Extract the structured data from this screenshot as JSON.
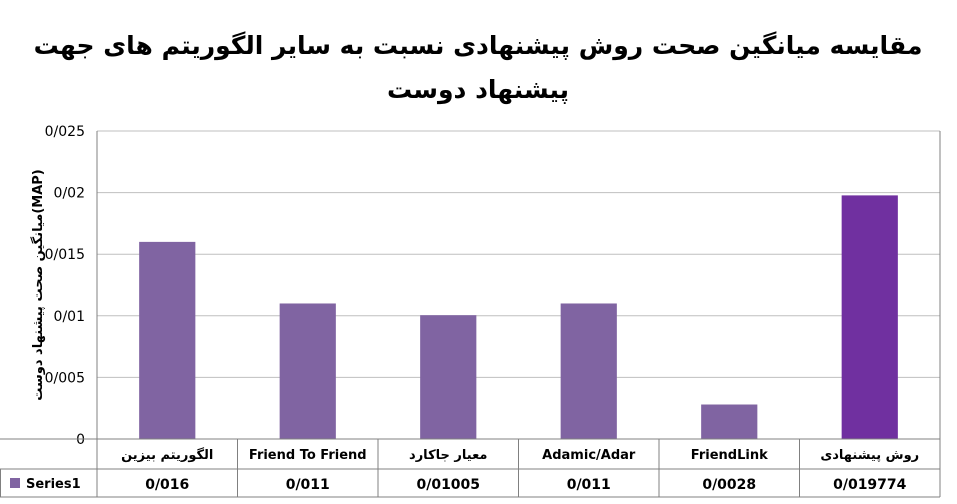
{
  "chart_data": {
    "type": "bar",
    "title_lines": [
      "مقایسه میانگین صحت روش پیشنهادی نسبت به سایر الگوریتم های جهت",
      "پیشنهاد دوست"
    ],
    "ylabel": "میانگین صحت پیشنهاد دوست(MAP)",
    "xlabel": "",
    "ylim": [
      0,
      0.025
    ],
    "yticks": [
      0,
      0.005,
      0.01,
      0.015,
      0.02,
      0.025
    ],
    "ytick_labels": [
      "0",
      "0/005",
      "0/01",
      "0/015",
      "0/02",
      "0/025"
    ],
    "categories": [
      "الگوریتم بیزین",
      "Friend To Friend",
      "معیار جاکارد",
      "Adamic/Adar",
      "FriendLink",
      "روش پیشنهادی"
    ],
    "series": [
      {
        "name": "Series1",
        "values": [
          0.016,
          0.011,
          0.01005,
          0.011,
          0.0028,
          0.019774
        ],
        "value_labels": [
          "0/016",
          "0/011",
          "0/01005",
          "0/011",
          "0/0028",
          "0/019774"
        ]
      }
    ],
    "colors": {
      "bar": "#8064A2",
      "bar_highlight": "#7030A0",
      "grid": "#BFBFBF",
      "axis": "#808080"
    },
    "grid": true,
    "legend": "data-table"
  }
}
